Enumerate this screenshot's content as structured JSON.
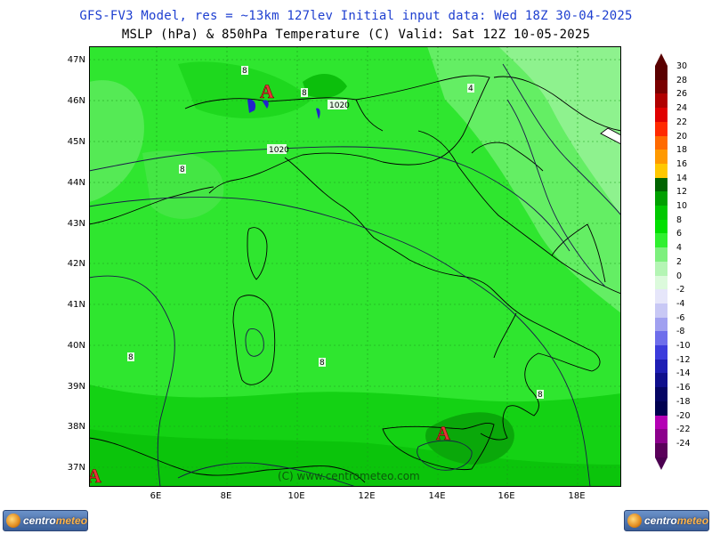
{
  "header": {
    "line1": "GFS-FV3 Model, res = ~13km 127lev   Initial input data: Wed 18Z 30-04-2025",
    "line2": "MSLP (hPa) & 850hPa Temperature (C)  Valid: Sat 12Z 10-05-2025"
  },
  "map": {
    "watermark": "(C) www.centrometeo.com",
    "high_marker": "A",
    "lat_labels": [
      "47N",
      "46N",
      "45N",
      "44N",
      "43N",
      "42N",
      "41N",
      "40N",
      "39N",
      "38N",
      "37N"
    ],
    "lon_labels": [
      "6E",
      "8E",
      "10E",
      "12E",
      "14E",
      "16E",
      "18E"
    ],
    "isobar_labels": [
      "1020",
      "1020"
    ],
    "isotherm_labels": [
      "8",
      "8",
      "8",
      "4",
      "8",
      "8",
      "8"
    ]
  },
  "legend": {
    "labels": [
      "30",
      "28",
      "26",
      "24",
      "22",
      "20",
      "18",
      "16",
      "14",
      "12",
      "10",
      "8",
      "6",
      "4",
      "2",
      "0",
      "-2",
      "-4",
      "-6",
      "-8",
      "-10",
      "-12",
      "-14",
      "-16",
      "-18",
      "-20",
      "-22",
      "-24"
    ],
    "colors": [
      "#5a0000",
      "#7a0000",
      "#b00000",
      "#e00000",
      "#ff2a00",
      "#ff6a00",
      "#ff9900",
      "#ffc800",
      "#006400",
      "#00a000",
      "#00c800",
      "#00e000",
      "#2ff02f",
      "#7df07d",
      "#b4f5b4",
      "#dcfadc",
      "#e6e6fa",
      "#c8c8f5",
      "#a0a0f0",
      "#6e6eeb",
      "#3c3cdc",
      "#1e1eb4",
      "#0f0f8c",
      "#050564",
      "#000050",
      "#b400b4",
      "#8c008c",
      "#5a005a"
    ],
    "top_color": "#5a0000",
    "bottom_color": "#4b0050"
  },
  "logos": {
    "left_label_a": "centro",
    "left_label_b": "meteo",
    "right_label_a": "centro",
    "right_label_b": "meteo"
  }
}
